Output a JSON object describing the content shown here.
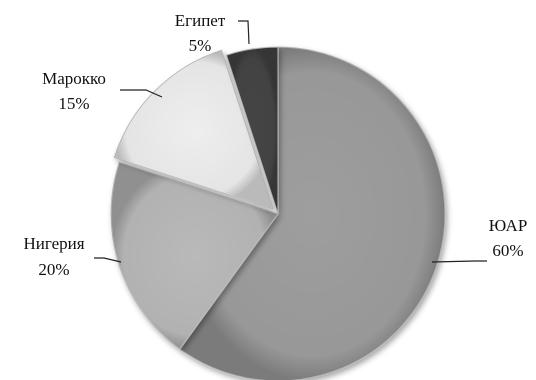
{
  "chart_data": {
    "type": "pie",
    "title": "",
    "slices": [
      {
        "label": "ЮАР",
        "value": 60,
        "value_label": "60%",
        "color": "#9e9e9e"
      },
      {
        "label": "Нигерия",
        "value": 20,
        "value_label": "20%",
        "color": "#b9b9b9"
      },
      {
        "label": "Марокко",
        "value": 15,
        "value_label": "15%",
        "color": "#eeeeee"
      },
      {
        "label": "Египет",
        "value": 5,
        "value_label": "5%",
        "color": "#444444"
      }
    ],
    "start": "12 o'clock",
    "direction": "clockwise",
    "style": "3D shaded with bevel, Марокко slice exploded",
    "legend": "none",
    "labels": "outside with leader lines"
  }
}
